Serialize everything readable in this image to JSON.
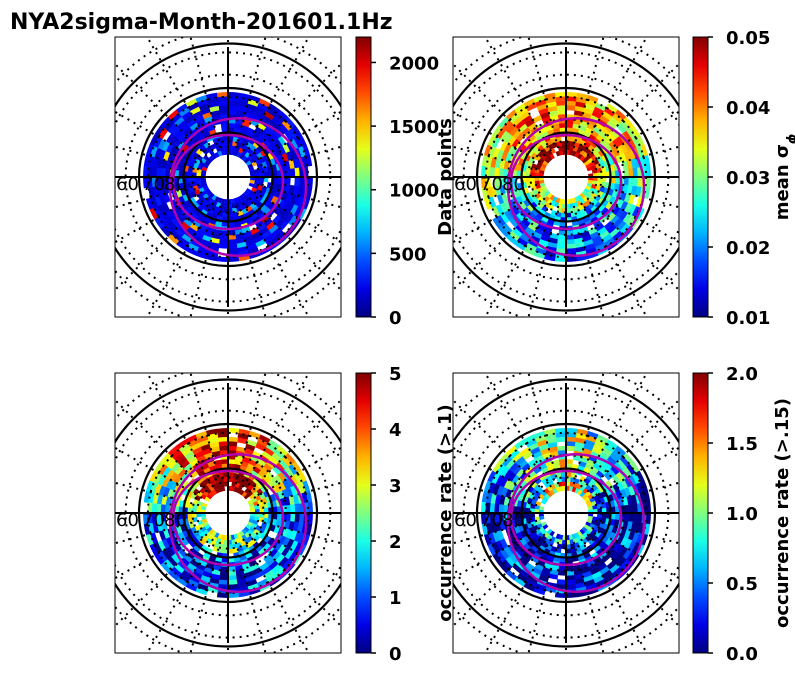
{
  "figure_title": "NYA2sigma-Month-201601.1Hz",
  "colormap": "jet",
  "oval_color": "#b000b0",
  "lat_labels": [
    "60",
    "70",
    "80"
  ],
  "chart_data": [
    {
      "type": "heatmap",
      "projection": "polar",
      "panel": "top-left",
      "colorbar_label": "Data points",
      "colorbar_label_math": "",
      "vmin": 0,
      "vmax": 2200,
      "ticks": [
        0,
        500,
        1000,
        1500,
        2000
      ],
      "tick_labels": [
        "0",
        "500",
        "1000",
        "1500",
        "2000"
      ],
      "pattern": "low",
      "latitude_range": [
        60,
        90
      ],
      "data_band_lat": [
        71,
        85
      ]
    },
    {
      "type": "heatmap",
      "projection": "polar",
      "panel": "top-right",
      "colorbar_label": "mean σ",
      "colorbar_label_math": "ϕ",
      "vmin": 0.01,
      "vmax": 0.05,
      "ticks": [
        0.01,
        0.02,
        0.03,
        0.04,
        0.05
      ],
      "tick_labels": [
        "0.01",
        "0.02",
        "0.03",
        "0.04",
        "0.05"
      ],
      "pattern": "sigma",
      "latitude_range": [
        60,
        90
      ],
      "data_band_lat": [
        71,
        85
      ]
    },
    {
      "type": "heatmap",
      "projection": "polar",
      "panel": "bottom-left",
      "colorbar_label": "occurrence rate (>.1)",
      "colorbar_label_math": "",
      "vmin": 0,
      "vmax": 5,
      "ticks": [
        0,
        1,
        2,
        3,
        4,
        5
      ],
      "tick_labels": [
        "0",
        "1",
        "2",
        "3",
        "4",
        "5"
      ],
      "pattern": "occ1",
      "latitude_range": [
        60,
        90
      ],
      "data_band_lat": [
        71,
        85
      ]
    },
    {
      "type": "heatmap",
      "projection": "polar",
      "panel": "bottom-right",
      "colorbar_label": "occurrence rate (>.15)",
      "colorbar_label_math": "",
      "vmin": 0.0,
      "vmax": 2.0,
      "ticks": [
        0.0,
        0.5,
        1.0,
        1.5,
        2.0
      ],
      "tick_labels": [
        "0.0",
        "0.5",
        "1.0",
        "1.5",
        "2.0"
      ],
      "pattern": "occ2",
      "latitude_range": [
        60,
        90
      ],
      "data_band_lat": [
        71,
        85
      ]
    }
  ]
}
